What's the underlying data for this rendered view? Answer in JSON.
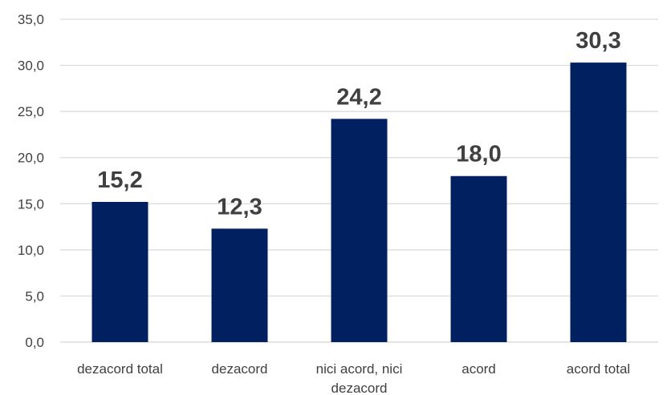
{
  "chart_data": {
    "type": "bar",
    "title": "",
    "xlabel": "",
    "ylabel": "",
    "categories": [
      [
        "dezacord total"
      ],
      [
        "dezacord"
      ],
      [
        "nici acord, nici",
        "dezacord"
      ],
      [
        "acord"
      ],
      [
        "acord total"
      ]
    ],
    "values": [
      15.2,
      12.3,
      24.2,
      18.0,
      30.3
    ],
    "value_labels": [
      "15,2",
      "12,3",
      "24,2",
      "18,0",
      "30,3"
    ],
    "ylim": [
      0,
      35
    ],
    "yticks": [
      "0,0",
      "5,0",
      "10,0",
      "15,0",
      "20,0",
      "25,0",
      "30,0",
      "35,0"
    ],
    "grid": true,
    "legend": "none",
    "colors": {
      "bar": "#002060",
      "grid": "#d9d9d9",
      "text": "#404040"
    }
  }
}
